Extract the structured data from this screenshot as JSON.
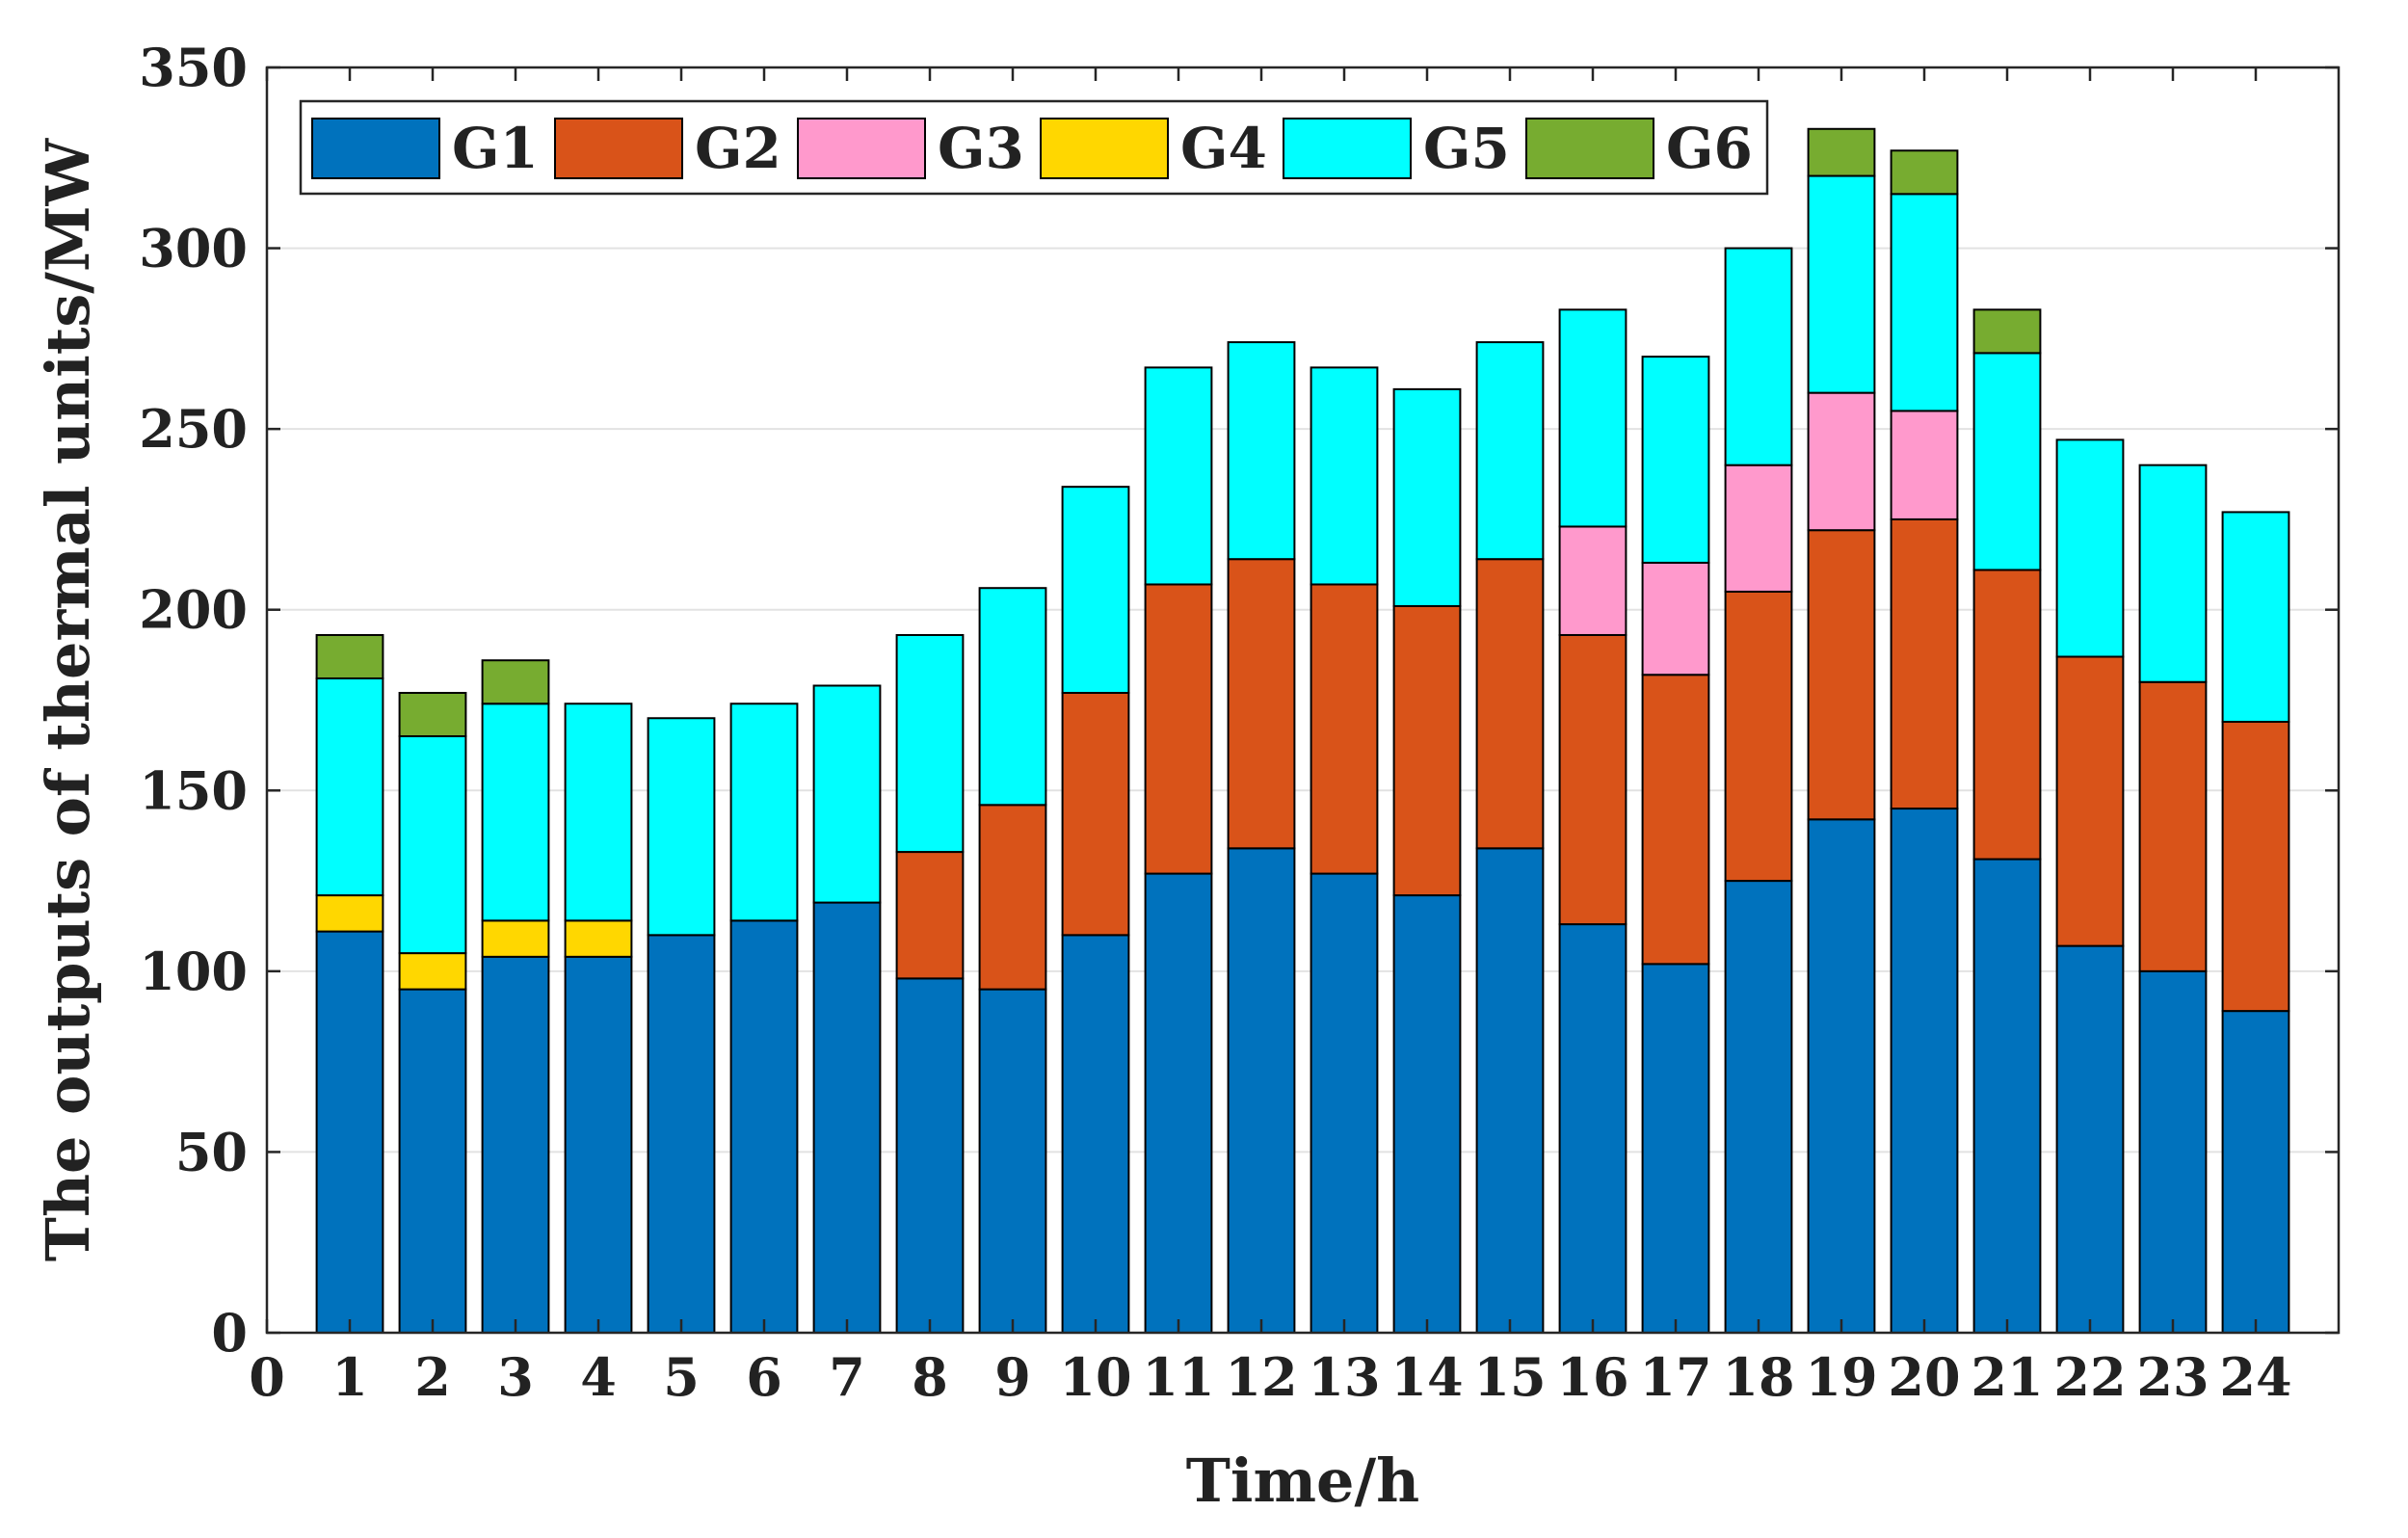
{
  "chart_data": {
    "type": "bar",
    "stacked": true,
    "title": "",
    "xlabel": "Time/h",
    "ylabel": "The outputs of thermal units/MW",
    "xlim": [
      0,
      25
    ],
    "ylim": [
      0,
      350
    ],
    "x_ticks": [
      0,
      1,
      2,
      3,
      4,
      5,
      6,
      7,
      8,
      9,
      10,
      11,
      12,
      13,
      14,
      15,
      16,
      17,
      18,
      19,
      20,
      21,
      22,
      23,
      24
    ],
    "y_ticks": [
      0,
      50,
      100,
      150,
      200,
      250,
      300,
      350
    ],
    "grid": "horizontal",
    "legend_position": "top-left",
    "categories": [
      1,
      2,
      3,
      4,
      5,
      6,
      7,
      8,
      9,
      10,
      11,
      12,
      13,
      14,
      15,
      16,
      17,
      18,
      19,
      20,
      21,
      22,
      23,
      24
    ],
    "series": [
      {
        "name": "G1",
        "color": "#0072BD",
        "values": [
          111,
          95,
          104,
          104,
          110,
          114,
          119,
          98,
          95,
          110,
          127,
          134,
          127,
          121,
          134,
          113,
          102,
          125,
          142,
          145,
          131,
          107,
          100,
          89
        ]
      },
      {
        "name": "G2",
        "color": "#D95319",
        "values": [
          0,
          0,
          0,
          0,
          0,
          0,
          0,
          35,
          51,
          67,
          80,
          80,
          80,
          80,
          80,
          80,
          80,
          80,
          80,
          80,
          80,
          80,
          80,
          80
        ]
      },
      {
        "name": "G3",
        "color": "#FF99CC",
        "values": [
          0,
          0,
          0,
          0,
          0,
          0,
          0,
          0,
          0,
          0,
          0,
          0,
          0,
          0,
          0,
          30,
          31,
          35,
          38,
          30,
          0,
          0,
          0,
          0
        ]
      },
      {
        "name": "G4",
        "color": "#FFD700",
        "values": [
          10,
          10,
          10,
          10,
          0,
          0,
          0,
          0,
          0,
          0,
          0,
          0,
          0,
          0,
          0,
          0,
          0,
          0,
          0,
          0,
          0,
          0,
          0,
          0
        ]
      },
      {
        "name": "G5",
        "color": "#00FFFF",
        "values": [
          60,
          60,
          60,
          60,
          60,
          60,
          60,
          60,
          60,
          57,
          60,
          60,
          60,
          60,
          60,
          60,
          57,
          60,
          60,
          60,
          60,
          60,
          60,
          58
        ]
      },
      {
        "name": "G6",
        "color": "#77AC30",
        "values": [
          12,
          12,
          12,
          0,
          0,
          0,
          0,
          0,
          0,
          0,
          0,
          0,
          0,
          0,
          0,
          0,
          0,
          0,
          13,
          12,
          12,
          0,
          0,
          0
        ]
      }
    ]
  }
}
